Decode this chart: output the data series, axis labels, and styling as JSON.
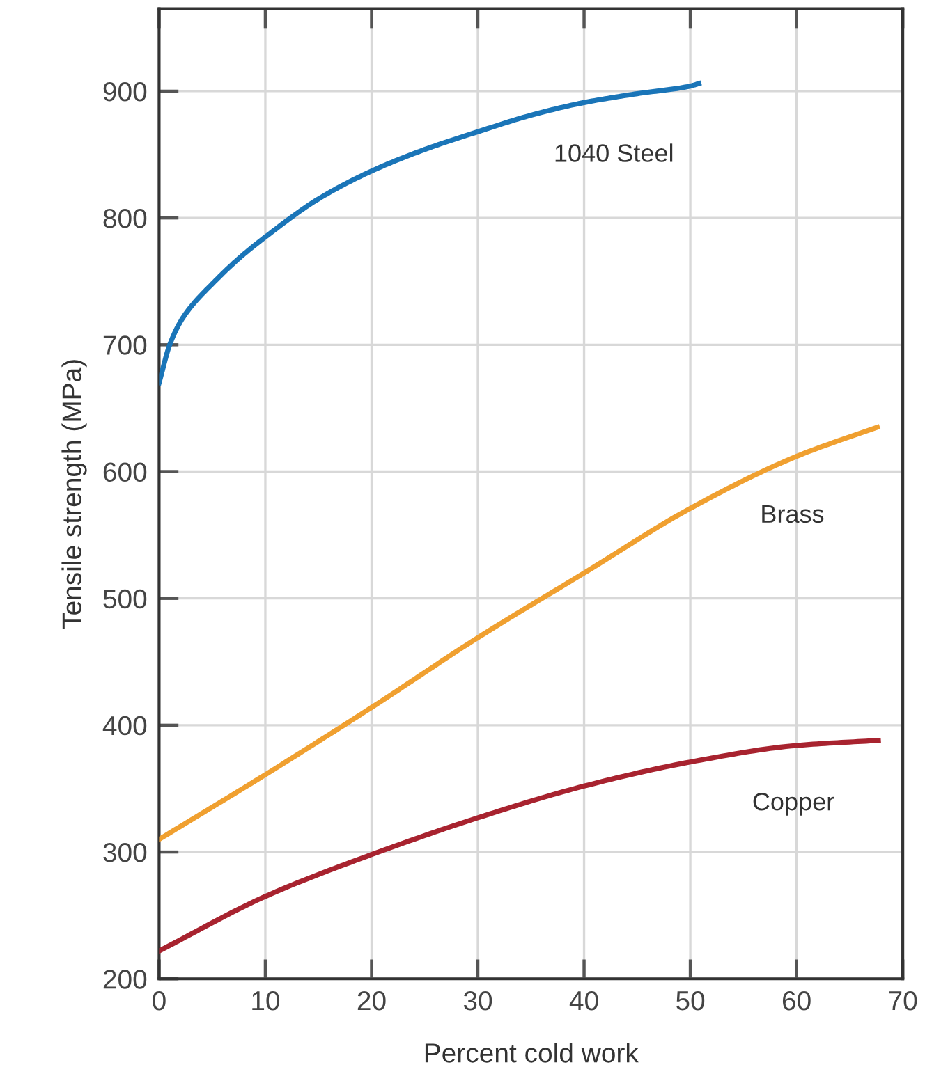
{
  "chart_data": {
    "type": "line",
    "xlabel": "Percent cold work",
    "ylabel": "Tensile strength (MPa)",
    "xlim": [
      0,
      70
    ],
    "xticks": [
      0,
      10,
      20,
      30,
      40,
      50,
      60,
      70
    ],
    "ylim": [
      200,
      965
    ],
    "yticks": [
      200,
      300,
      400,
      500,
      600,
      700,
      800,
      900
    ],
    "grid": true,
    "line_style": "solid",
    "marker": "none",
    "series": [
      {
        "name": "1040 Steel",
        "color": "#1a75b8",
        "x": [
          0,
          1,
          2,
          3,
          5,
          7.5,
          10,
          15,
          20,
          25,
          30,
          35,
          40,
          45,
          50,
          50.8
        ],
        "values": [
          670,
          700,
          718,
          730,
          748,
          768,
          785,
          815,
          837,
          854,
          868,
          881,
          891,
          898,
          904,
          906
        ]
      },
      {
        "name": "Brass",
        "color": "#f0a030",
        "x": [
          0,
          10,
          20,
          30,
          40,
          50,
          60,
          67.6
        ],
        "values": [
          310,
          361,
          414,
          469,
          520,
          571,
          612,
          635
        ]
      },
      {
        "name": "Copper",
        "color": "#a8232f",
        "x": [
          0,
          10,
          20,
          30,
          40,
          50,
          60,
          67.7
        ],
        "values": [
          222,
          265,
          298,
          327,
          352,
          371,
          384,
          388
        ]
      }
    ]
  }
}
